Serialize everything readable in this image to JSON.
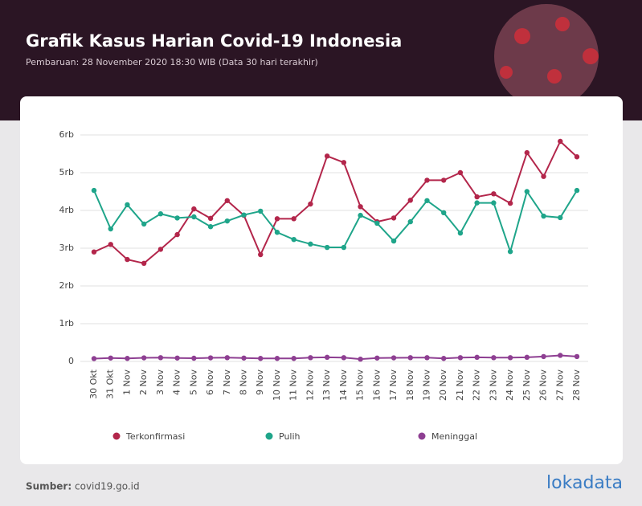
{
  "chart_data": {
    "type": "line",
    "title": "Grafik Kasus Harian Covid-19 Indonesia",
    "subtitle": "Pembaruan: 28 November 2020 18:30 WIB (Data 30 hari terakhir)",
    "categories": [
      "30 Okt",
      "31 Okt",
      "1 Nov",
      "2 Nov",
      "3 Nov",
      "4 Nov",
      "5 Nov",
      "6 Nov",
      "7 Nov",
      "8 Nov",
      "9 Nov",
      "10 Nov",
      "11 Nov",
      "12 Nov",
      "13 Nov",
      "14 Nov",
      "15 Nov",
      "16 Nov",
      "17 Nov",
      "18 Nov",
      "19 Nov",
      "20 Nov",
      "21 Nov",
      "22 Nov",
      "23 Nov",
      "24 Nov",
      "25 Nov",
      "26 Nov",
      "27 Nov",
      "28 Nov"
    ],
    "series": [
      {
        "name": "Terkonfirmasi",
        "color": "#b3264b",
        "values": [
          2900,
          3100,
          2700,
          2600,
          2970,
          3360,
          4040,
          3790,
          4260,
          3870,
          2830,
          3780,
          3780,
          4170,
          5440,
          5270,
          4100,
          3700,
          3800,
          4270,
          4800,
          4800,
          5000,
          4360,
          4440,
          4190,
          5530,
          4900,
          5830,
          5420
        ]
      },
      {
        "name": "Pulih",
        "color": "#1fa58a",
        "values": [
          4530,
          3510,
          4150,
          3640,
          3910,
          3800,
          3830,
          3570,
          3720,
          3880,
          3980,
          3420,
          3230,
          3110,
          3020,
          3020,
          3870,
          3660,
          3190,
          3700,
          4260,
          3940,
          3400,
          4200,
          4200,
          2910,
          4500,
          3850,
          3810,
          4530
        ]
      },
      {
        "name": "Meninggal",
        "color": "#8e3f92",
        "values": [
          75,
          90,
          80,
          95,
          100,
          90,
          85,
          95,
          100,
          90,
          80,
          80,
          80,
          100,
          110,
          100,
          60,
          90,
          95,
          100,
          100,
          80,
          100,
          110,
          100,
          100,
          110,
          130,
          160,
          130
        ]
      }
    ],
    "ylim": [
      0,
      6000
    ],
    "yticks": [
      0,
      {
        "value": 1000,
        "label": "1rb"
      },
      {
        "value": 2000,
        "label": "2rb"
      },
      {
        "value": 3000,
        "label": "3rb"
      },
      {
        "value": 4000,
        "label": "4rb"
      },
      {
        "value": 5000,
        "label": "5rb"
      },
      {
        "value": 6000,
        "label": "6rb"
      }
    ],
    "grid": true,
    "legend": "bottom",
    "source_label": "Sumber:",
    "source": "covid19.go.id",
    "brand": "lokadata"
  }
}
